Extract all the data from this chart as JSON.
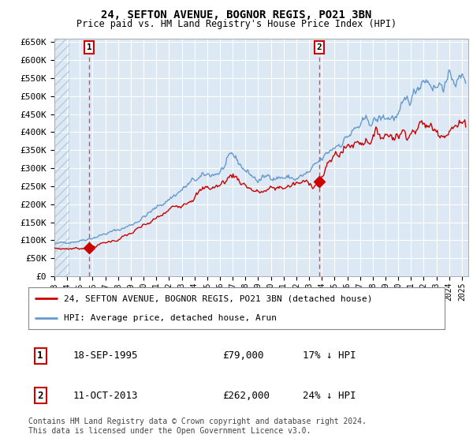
{
  "title": "24, SEFTON AVENUE, BOGNOR REGIS, PO21 3BN",
  "subtitle": "Price paid vs. HM Land Registry's House Price Index (HPI)",
  "plot_bg_color": "#dce9f5",
  "ylim": [
    0,
    660000
  ],
  "yticks": [
    0,
    50000,
    100000,
    150000,
    200000,
    250000,
    300000,
    350000,
    400000,
    450000,
    500000,
    550000,
    600000,
    650000
  ],
  "ytick_labels": [
    "£0",
    "£50K",
    "£100K",
    "£150K",
    "£200K",
    "£250K",
    "£300K",
    "£350K",
    "£400K",
    "£450K",
    "£500K",
    "£550K",
    "£600K",
    "£650K"
  ],
  "xlim_start": 1993.0,
  "xlim_end": 2025.5,
  "xtick_years": [
    1993,
    1994,
    1995,
    1996,
    1997,
    1998,
    1999,
    2000,
    2001,
    2002,
    2003,
    2004,
    2005,
    2006,
    2007,
    2008,
    2009,
    2010,
    2011,
    2012,
    2013,
    2014,
    2015,
    2016,
    2017,
    2018,
    2019,
    2020,
    2021,
    2022,
    2023,
    2024,
    2025
  ],
  "sale1_x": 1995.72,
  "sale1_y": 79000,
  "sale1_label": "1",
  "sale1_date": "18-SEP-1995",
  "sale1_price": "£79,000",
  "sale1_hpi": "17% ↓ HPI",
  "sale2_x": 2013.78,
  "sale2_y": 262000,
  "sale2_label": "2",
  "sale2_date": "11-OCT-2013",
  "sale2_price": "£262,000",
  "sale2_hpi": "24% ↓ HPI",
  "line1_label": "24, SEFTON AVENUE, BOGNOR REGIS, PO21 3BN (detached house)",
  "line2_label": "HPI: Average price, detached house, Arun",
  "sale_color": "#cc0000",
  "hpi_color": "#6699cc",
  "footer": "Contains HM Land Registry data © Crown copyright and database right 2024.\nThis data is licensed under the Open Government Licence v3.0."
}
